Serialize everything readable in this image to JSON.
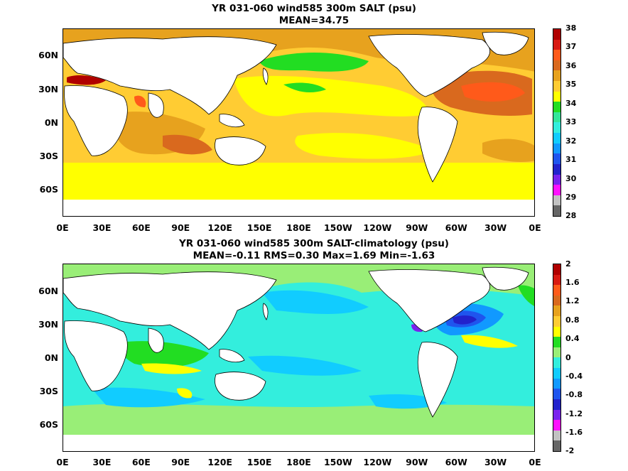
{
  "panels": [
    {
      "title_line1": "YR 031-060 wind585 300m SALT (psu)",
      "title_line2": "MEAN=34.75",
      "colorbar": {
        "labels": [
          "38",
          "37",
          "36",
          "35",
          "34",
          "33",
          "32",
          "31",
          "30",
          "29",
          "28"
        ],
        "colors": [
          "#b00000",
          "#d81a12",
          "#ff5a1a",
          "#d9691e",
          "#e7a21e",
          "#ffcc33",
          "#ffff00",
          "#22dd22",
          "#33e69a",
          "#33eedd",
          "#11ccff",
          "#1199ff",
          "#1f55ee",
          "#2222cc",
          "#7a22ee",
          "#ff11ff",
          "#c2c2c2",
          "#666666"
        ]
      }
    },
    {
      "title_line1": "YR 031-060 wind585 300m SALT-climatology (psu)",
      "title_line2": "MEAN=-0.11   RMS=0.30   Max=1.69   Min=-1.63",
      "colorbar": {
        "labels": [
          "2",
          "1.6",
          "1.2",
          "0.8",
          "0.4",
          "0",
          "-0.4",
          "-0.8",
          "-1.2",
          "-1.6",
          "-2"
        ],
        "colors": [
          "#b00000",
          "#d81a12",
          "#ff5a1a",
          "#d9691e",
          "#e7a21e",
          "#ffcc33",
          "#ffff00",
          "#22dd22",
          "#99ee77",
          "#33eedd",
          "#11ccff",
          "#1199ff",
          "#1f55ee",
          "#2222cc",
          "#7a22ee",
          "#ff11ff",
          "#c2c2c2",
          "#666666"
        ]
      }
    }
  ],
  "axes": {
    "x_ticks": [
      "0E",
      "30E",
      "60E",
      "90E",
      "120E",
      "150E",
      "180E",
      "150W",
      "120W",
      "90W",
      "60W",
      "30W",
      "0E"
    ],
    "y_ticks": [
      "60N",
      "30N",
      "0N",
      "30S",
      "60S"
    ]
  }
}
